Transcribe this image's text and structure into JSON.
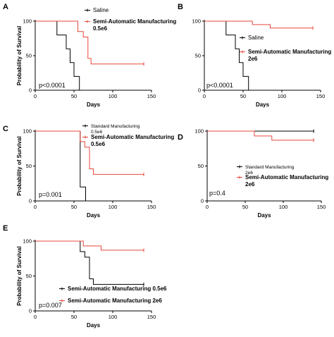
{
  "chart_data": [
    {
      "id": "A",
      "type": "line",
      "subtype": "kaplan-meier",
      "panel_label": "A",
      "xlabel": "Days",
      "ylabel": "Probability of Survival",
      "xlim": [
        0,
        150
      ],
      "ylim": [
        0,
        100
      ],
      "xticks": [
        "0",
        "50",
        "100",
        "150"
      ],
      "yticks": [
        "0",
        "50",
        "100"
      ],
      "annotation": "p<0.0001",
      "legend_position": "top-right",
      "series": [
        {
          "name": "Saline",
          "color": "#000000",
          "legend_style": "normal",
          "x": [
            0,
            28,
            40,
            45,
            50,
            57
          ],
          "y": [
            100,
            80,
            60,
            40,
            20,
            0
          ],
          "censor": []
        },
        {
          "name": "Semi-Automatic Manufacturing 0.5e6",
          "color": "#e8473c",
          "legend_style": "bold",
          "x": [
            0,
            55,
            62,
            68,
            72,
            140
          ],
          "y": [
            100,
            85,
            77,
            46,
            38,
            38
          ],
          "censor": [
            [
              140,
              38
            ]
          ]
        }
      ]
    },
    {
      "id": "B",
      "type": "line",
      "subtype": "kaplan-meier",
      "panel_label": "B",
      "xlabel": "Days",
      "ylabel": "",
      "xlim": [
        0,
        150
      ],
      "ylim": [
        0,
        100
      ],
      "xticks": [
        "0",
        "50",
        "100",
        "150"
      ],
      "yticks": [
        "0",
        "50",
        "100"
      ],
      "annotation": "p<0.0001",
      "legend_position": "middle-right",
      "series": [
        {
          "name": "Saline",
          "color": "#000000",
          "legend_style": "normal",
          "x": [
            0,
            28,
            40,
            45,
            50,
            57
          ],
          "y": [
            100,
            80,
            60,
            40,
            20,
            0
          ],
          "censor": []
        },
        {
          "name": "Semi-Automatic Manufacturing 2e6",
          "color": "#e8473c",
          "legend_style": "bold",
          "x": [
            0,
            62,
            85,
            140
          ],
          "y": [
            100,
            95,
            90,
            90
          ],
          "censor": [
            [
              140,
              90
            ]
          ]
        }
      ]
    },
    {
      "id": "C",
      "type": "line",
      "subtype": "kaplan-meier",
      "panel_label": "C",
      "xlabel": "Days",
      "ylabel": "Probability of Survival",
      "xlim": [
        0,
        150
      ],
      "ylim": [
        0,
        100
      ],
      "xticks": [
        "0",
        "50",
        "100",
        "150"
      ],
      "yticks": [
        "0",
        "50",
        "100"
      ],
      "annotation": "p=0.001",
      "legend_position": "top-right",
      "series": [
        {
          "name": "Standard Manufacturing 0.5e6",
          "color": "#000000",
          "legend_style": "small",
          "x": [
            0,
            58,
            62,
            65
          ],
          "y": [
            100,
            20,
            20,
            0
          ],
          "censor": []
        },
        {
          "name": "Semi-Automatic Manufacturing 0.5e6",
          "color": "#e8473c",
          "legend_style": "bold",
          "x": [
            0,
            58,
            64,
            70,
            75,
            140
          ],
          "y": [
            100,
            85,
            77,
            46,
            38,
            38
          ],
          "censor": [
            [
              140,
              38
            ]
          ]
        }
      ]
    },
    {
      "id": "D",
      "type": "line",
      "subtype": "kaplan-meier",
      "panel_label": "D",
      "xlabel": "Days",
      "ylabel": "",
      "xlim": [
        0,
        150
      ],
      "ylim": [
        0,
        100
      ],
      "xticks": [
        "0",
        "50",
        "100",
        "150"
      ],
      "yticks": [
        "0",
        "50",
        "100"
      ],
      "annotation": "p=0.4",
      "legend_position": "middle-right",
      "series": [
        {
          "name": "Standard Manufacturing 2e6",
          "color": "#000000",
          "legend_style": "small",
          "x": [
            0,
            140
          ],
          "y": [
            100,
            100
          ],
          "censor": [
            [
              140,
              100
            ]
          ]
        },
        {
          "name": "Semi-Automatic Manufacturing 2e6",
          "color": "#e8473c",
          "legend_style": "bold",
          "x": [
            0,
            62,
            85,
            140
          ],
          "y": [
            100,
            93,
            87,
            87
          ],
          "censor": [
            [
              140,
              87
            ]
          ]
        }
      ]
    },
    {
      "id": "E",
      "type": "line",
      "subtype": "kaplan-meier",
      "panel_label": "E",
      "xlabel": "Days",
      "ylabel": "Probability of Survival",
      "xlim": [
        0,
        150
      ],
      "ylim": [
        0,
        100
      ],
      "xticks": [
        "0",
        "50",
        "100",
        "150"
      ],
      "yticks": [
        "0",
        "50",
        "100"
      ],
      "annotation": "p=0.007",
      "legend_position": "bottom-right",
      "series": [
        {
          "name": "Semi-Automatic Manufacturing 0.5e6",
          "color": "#000000",
          "legend_style": "bold",
          "x": [
            0,
            58,
            64,
            70,
            75,
            140
          ],
          "y": [
            100,
            85,
            77,
            46,
            38,
            38
          ],
          "censor": [
            [
              140,
              38
            ]
          ]
        },
        {
          "name": "Semi-Automatic Manufacturing 2e6",
          "color": "#e8473c",
          "legend_style": "bold",
          "x": [
            0,
            62,
            85,
            140
          ],
          "y": [
            100,
            93,
            87,
            87
          ],
          "censor": [
            [
              140,
              87
            ]
          ]
        }
      ]
    }
  ]
}
